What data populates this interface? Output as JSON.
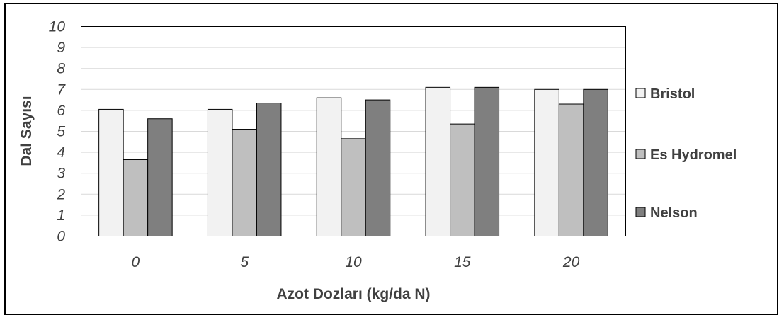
{
  "chart_data": {
    "type": "bar",
    "xlabel": "Azot Dozları (kg/da N)",
    "ylabel": "Dal Sayısı",
    "categories": [
      "0",
      "5",
      "10",
      "15",
      "20"
    ],
    "ylim": [
      0,
      10
    ],
    "yticks": [
      "0",
      "1",
      "2",
      "3",
      "4",
      "5",
      "6",
      "7",
      "8",
      "9",
      "10"
    ],
    "grid": true,
    "legend_position": "right",
    "series": [
      {
        "name": "Bristol",
        "color": "#f2f2f2",
        "values": [
          6.05,
          6.05,
          6.6,
          7.1,
          7.0
        ]
      },
      {
        "name": "Es Hydromel",
        "color": "#bfbfbf",
        "values": [
          3.65,
          5.1,
          4.65,
          5.35,
          6.3
        ]
      },
      {
        "name": "Nelson",
        "color": "#7f7f7f",
        "values": [
          5.6,
          6.35,
          6.5,
          7.1,
          7.0
        ]
      }
    ]
  }
}
